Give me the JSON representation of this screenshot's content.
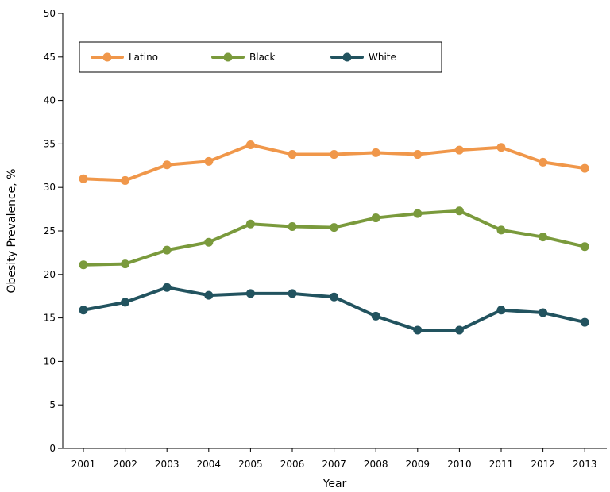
{
  "chart_data": {
    "type": "line",
    "title": "",
    "xlabel": "Year",
    "ylabel": "Obesity Prevalence, %",
    "ylim": [
      0,
      50
    ],
    "yticks": [
      0,
      5,
      10,
      15,
      20,
      25,
      30,
      35,
      40,
      45,
      50
    ],
    "categories": [
      "2001",
      "2002",
      "2003",
      "2004",
      "2005",
      "2006",
      "2007",
      "2008",
      "2009",
      "2010",
      "2011",
      "2012",
      "2013"
    ],
    "grid": false,
    "legend_position": "top",
    "series": [
      {
        "name": "Latino",
        "color": "#f0974a",
        "values": [
          31.0,
          30.8,
          32.6,
          33.0,
          34.9,
          33.8,
          33.8,
          34.0,
          33.8,
          34.3,
          34.6,
          32.9,
          32.2
        ]
      },
      {
        "name": "Black",
        "color": "#7a9a3c",
        "values": [
          21.1,
          21.2,
          22.8,
          23.7,
          25.8,
          25.5,
          25.4,
          26.5,
          27.0,
          27.3,
          25.1,
          24.3,
          23.2
        ]
      },
      {
        "name": "White",
        "color": "#22535f",
        "values": [
          15.9,
          16.8,
          18.5,
          17.6,
          17.8,
          17.8,
          17.4,
          15.2,
          13.6,
          13.6,
          15.9,
          15.6,
          14.5
        ]
      }
    ]
  }
}
